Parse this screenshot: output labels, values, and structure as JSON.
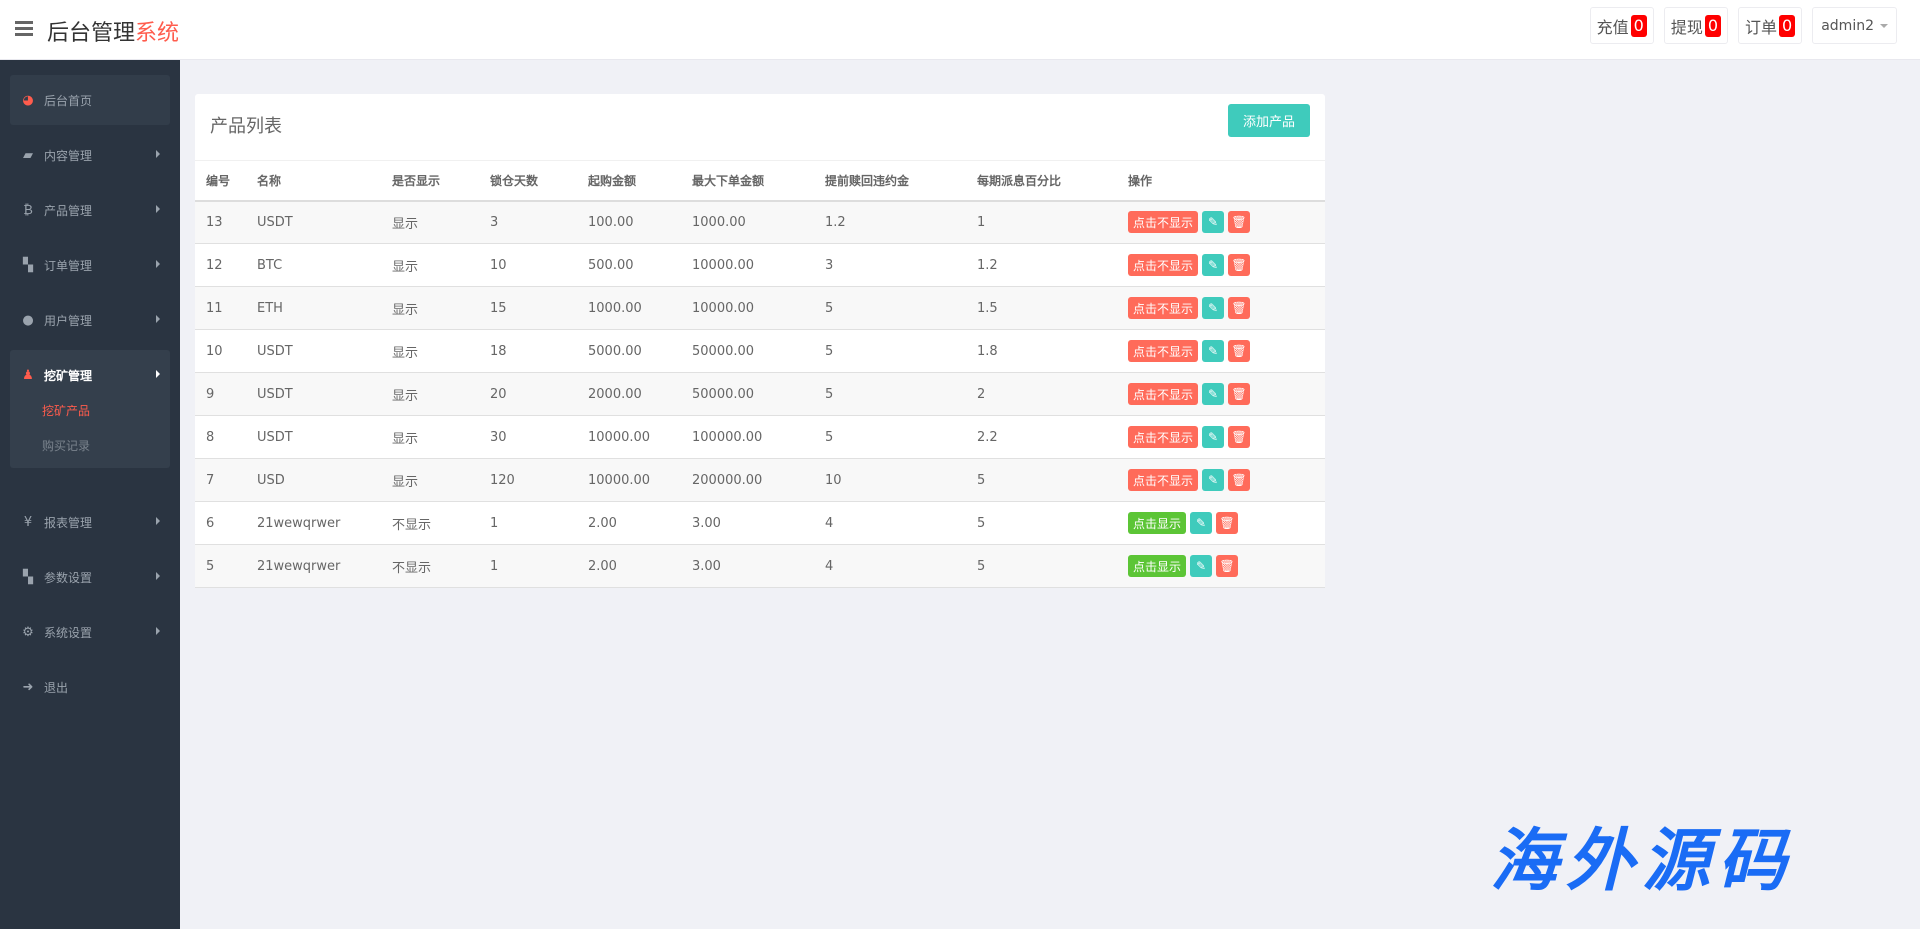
{
  "header": {
    "title_main": "后台管理",
    "title_accent": "系统",
    "accent_color": "#ff5c4d",
    "buttons": [
      {
        "label": "充值",
        "count": "0"
      },
      {
        "label": "提现",
        "count": "0"
      },
      {
        "label": "订单",
        "count": "0"
      }
    ],
    "user": "admin2"
  },
  "sidebar": {
    "items": [
      {
        "label": "后台首页",
        "icon": "dashboard-icon"
      },
      {
        "label": "内容管理",
        "icon": "book-icon"
      },
      {
        "label": "产品管理",
        "icon": "bitcoin-icon"
      },
      {
        "label": "订单管理",
        "icon": "files-icon"
      },
      {
        "label": "用户管理",
        "icon": "user-icon"
      },
      {
        "label": "挖矿管理",
        "icon": "miner-icon",
        "sub": [
          {
            "label": "挖矿产品",
            "active": true
          },
          {
            "label": "购买记录"
          }
        ]
      },
      {
        "label": "报表管理",
        "icon": "yen-icon"
      },
      {
        "label": "参数设置",
        "icon": "files-icon"
      },
      {
        "label": "系统设置",
        "icon": "gears-icon"
      },
      {
        "label": "退出",
        "icon": "sign-out-icon"
      }
    ]
  },
  "main": {
    "title": "产品列表",
    "add_label": "添加产品",
    "columns": [
      "编号",
      "名称",
      "是否显示",
      "锁仓天数",
      "起购金额",
      "最大下单金额",
      "提前赎回违约金",
      "每期派息百分比",
      "操作"
    ],
    "rows": [
      [
        "13",
        "USDT",
        "显示",
        "3",
        "100.00",
        "1000.00",
        "1.2",
        "1",
        "点击不显示"
      ],
      [
        "12",
        "BTC",
        "显示",
        "10",
        "500.00",
        "10000.00",
        "3",
        "1.2",
        "点击不显示"
      ],
      [
        "11",
        "ETH",
        "显示",
        "15",
        "1000.00",
        "10000.00",
        "5",
        "1.5",
        "点击不显示"
      ],
      [
        "10",
        "USDT",
        "显示",
        "18",
        "5000.00",
        "50000.00",
        "5",
        "1.8",
        "点击不显示"
      ],
      [
        "9",
        "USDT",
        "显示",
        "20",
        "2000.00",
        "50000.00",
        "5",
        "2",
        "点击不显示"
      ],
      [
        "8",
        "USDT",
        "显示",
        "30",
        "10000.00",
        "100000.00",
        "5",
        "2.2",
        "点击不显示"
      ],
      [
        "7",
        "USD",
        "显示",
        "120",
        "10000.00",
        "200000.00",
        "10",
        "5",
        "点击不显示"
      ],
      [
        "6",
        "21wewqrwer",
        "不显示",
        "1",
        "2.00",
        "3.00",
        "4",
        "5",
        "点击显示"
      ],
      [
        "5",
        "21wewqrwer",
        "不显示",
        "1",
        "2.00",
        "3.00",
        "4",
        "5",
        "点击显示"
      ]
    ]
  },
  "watermark": "海外源码"
}
